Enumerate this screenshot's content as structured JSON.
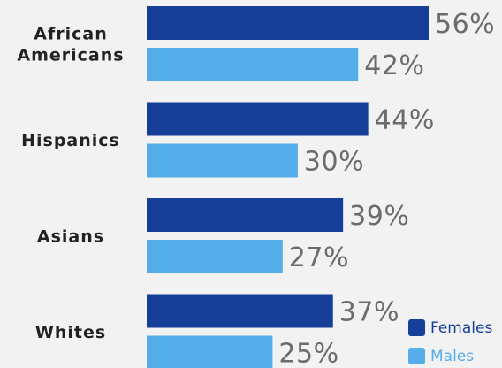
{
  "chart_data": {
    "type": "bar",
    "orientation": "horizontal",
    "categories": [
      "African Americans",
      "Hispanics",
      "Asians",
      "Whites"
    ],
    "category_lines": [
      [
        "African",
        "Americans"
      ],
      [
        "Hispanics"
      ],
      [
        "Asians"
      ],
      [
        "Whites"
      ]
    ],
    "series": [
      {
        "name": "Females",
        "values": [
          56,
          44,
          39,
          37
        ],
        "labels": [
          "56%",
          "44%",
          "39%",
          "37%"
        ],
        "color": "#173f99"
      },
      {
        "name": "Males",
        "values": [
          42,
          30,
          27,
          25
        ],
        "labels": [
          "42%",
          "30%",
          "27%",
          "25%"
        ],
        "color": "#55adea"
      }
    ],
    "value_unit": "%",
    "legend": {
      "position": "bottom-right",
      "entries": [
        "Females",
        "Males"
      ]
    },
    "grid": false,
    "xlim": [
      0,
      56
    ]
  }
}
